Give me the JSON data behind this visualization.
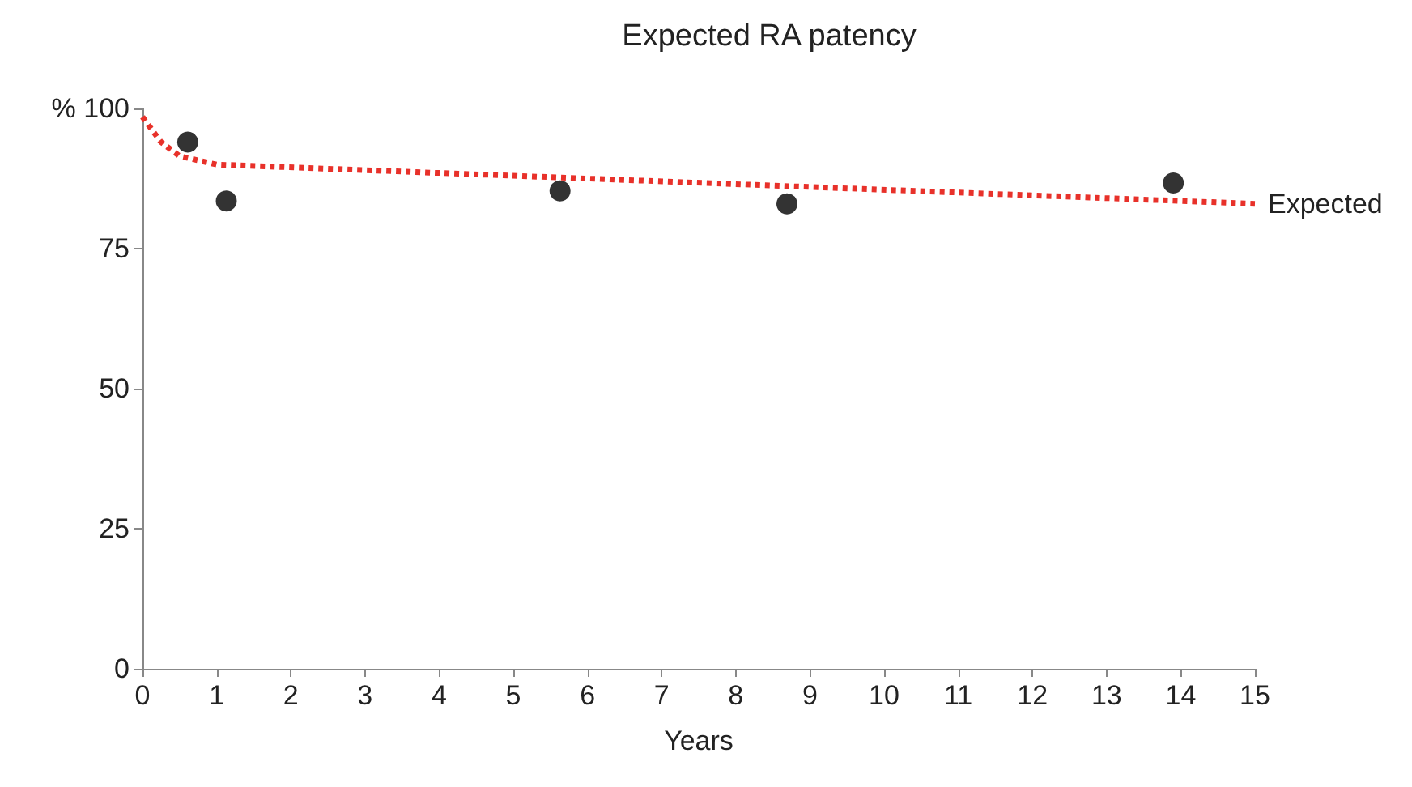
{
  "chart_data": {
    "type": "scatter",
    "title": "Expected RA patency",
    "xlabel": "Years",
    "xlim": [
      0,
      15
    ],
    "xticks": [
      0,
      1,
      2,
      3,
      4,
      5,
      6,
      7,
      8,
      9,
      10,
      11,
      12,
      13,
      14,
      15
    ],
    "ylim": [
      0,
      100
    ],
    "yticks": [
      0,
      25,
      50,
      75,
      {
        "value": 100,
        "label": "% 100"
      }
    ],
    "grid": false,
    "legend": false,
    "marker": "circle",
    "series": [
      {
        "color": "#000000",
        "x": [
          0.61,
          1.13,
          5.63,
          8.69,
          13.9
        ],
        "values": [
          94,
          83.5,
          85.3,
          83,
          86.7
        ]
      },
      {
        "type": "line",
        "name": "Expected",
        "color": "#e8312a",
        "line_style": "dotted",
        "marker": "none",
        "x": [
          0,
          0.25,
          0.5,
          1,
          3,
          6,
          9,
          12,
          15
        ],
        "values": [
          98.5,
          94,
          91.5,
          90,
          89,
          87.5,
          86,
          84.5,
          83
        ]
      }
    ]
  }
}
